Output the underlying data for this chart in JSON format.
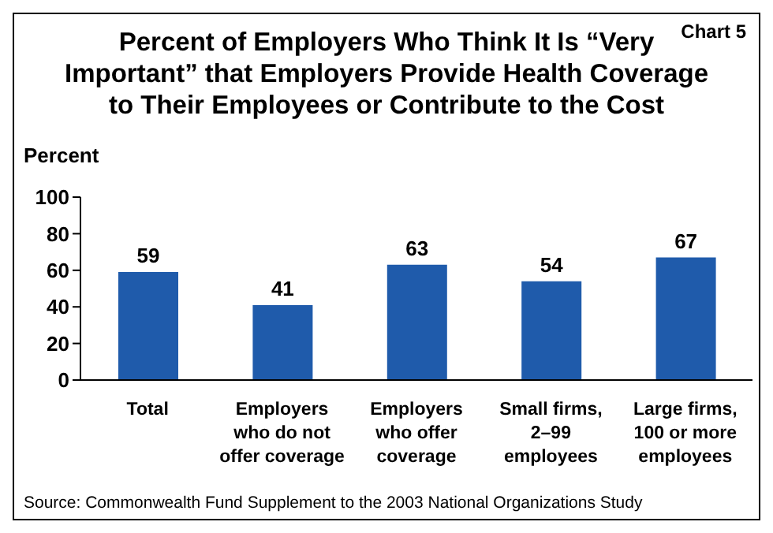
{
  "chart_data": {
    "type": "bar",
    "title": "Percent of Employers Who Think It Is “Very Important” that Employers Provide Health Coverage to Their Employees or Contribute to the Cost",
    "subtitle": "Chart 5",
    "ylabel": "Percent",
    "categories": [
      "Total",
      "Employers who do not offer coverage",
      "Employers who offer coverage",
      "Small firms, 2–99 employees",
      "Large firms, 100 or more employees"
    ],
    "values": [
      59,
      41,
      63,
      54,
      67
    ],
    "color": "#1f5bab",
    "ylim": [
      0,
      100
    ],
    "yticks": [
      0,
      20,
      40,
      60,
      80,
      100
    ],
    "grid": false,
    "data_labels": true,
    "legend": false,
    "annotations": [
      "Source: Commonwealth Fund Supplement to the 2003 National Organizations Study"
    ]
  }
}
